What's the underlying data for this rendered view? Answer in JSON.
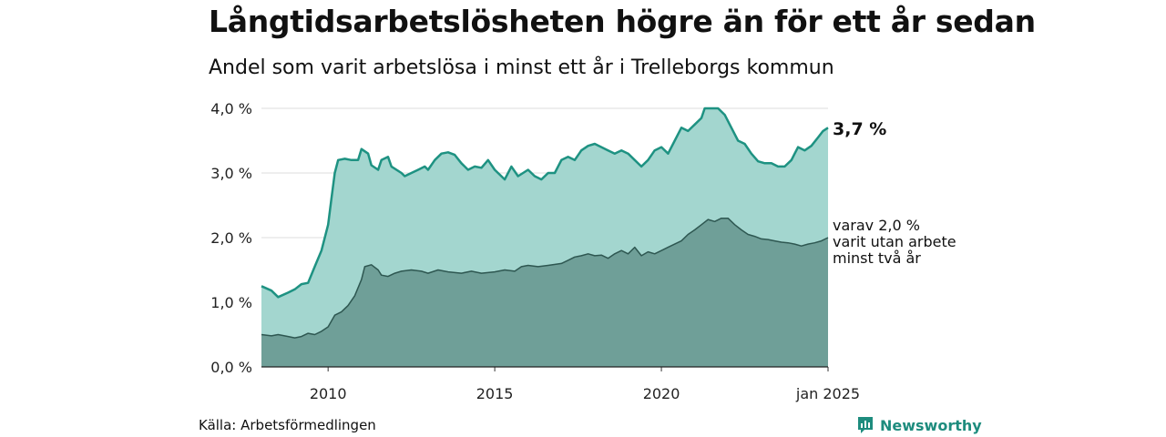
{
  "header": {
    "title": "Långtidsarbetslösheten högre än för ett år sedan",
    "subtitle": "Andel som varit arbetslösa i minst ett år i Trelleborgs kommun"
  },
  "footer": {
    "source": "Källa: Arbetsförmedlingen",
    "brand": "Newsworthy"
  },
  "labels": {
    "end_value": "3,7 %",
    "sub_line1": "varav 2,0 %",
    "sub_line2": "varit utan arbete",
    "sub_line3": "minst två år"
  },
  "colors": {
    "upper_fill": "#a3d6cf",
    "upper_line": "#1e9282",
    "lower_fill": "#6f9f98",
    "lower_line": "#2e5751",
    "grid": "#dddddd"
  },
  "chart_data": {
    "type": "area",
    "ylim": [
      0,
      4.0
    ],
    "y_ticks": [
      {
        "value": 0,
        "label": "0,0 %"
      },
      {
        "value": 1,
        "label": "1,0 %"
      },
      {
        "value": 2,
        "label": "2,0 %"
      },
      {
        "value": 3,
        "label": "3,0 %"
      },
      {
        "value": 4,
        "label": "4,0 %"
      }
    ],
    "x_ticks": [
      {
        "value": 2010.0,
        "label": "2010"
      },
      {
        "value": 2015.0,
        "label": "2015"
      },
      {
        "value": 2020.0,
        "label": "2020"
      },
      {
        "value": 2025.0,
        "label": "jan 2025"
      }
    ],
    "x_range": [
      2008.0,
      2025.0
    ],
    "series": [
      {
        "name": "minst ett år",
        "points": [
          [
            2008.0,
            1.25
          ],
          [
            2008.3,
            1.18
          ],
          [
            2008.5,
            1.08
          ],
          [
            2008.8,
            1.15
          ],
          [
            2009.0,
            1.2
          ],
          [
            2009.2,
            1.28
          ],
          [
            2009.4,
            1.3
          ],
          [
            2009.6,
            1.55
          ],
          [
            2009.8,
            1.8
          ],
          [
            2010.0,
            2.2
          ],
          [
            2010.1,
            2.6
          ],
          [
            2010.2,
            3.0
          ],
          [
            2010.3,
            3.2
          ],
          [
            2010.5,
            3.22
          ],
          [
            2010.7,
            3.2
          ],
          [
            2010.9,
            3.2
          ],
          [
            2011.0,
            3.37
          ],
          [
            2011.2,
            3.3
          ],
          [
            2011.3,
            3.12
          ],
          [
            2011.5,
            3.05
          ],
          [
            2011.6,
            3.2
          ],
          [
            2011.8,
            3.25
          ],
          [
            2011.9,
            3.1
          ],
          [
            2012.2,
            3.0
          ],
          [
            2012.3,
            2.95
          ],
          [
            2012.5,
            3.0
          ],
          [
            2012.7,
            3.05
          ],
          [
            2012.9,
            3.1
          ],
          [
            2013.0,
            3.05
          ],
          [
            2013.2,
            3.2
          ],
          [
            2013.4,
            3.3
          ],
          [
            2013.6,
            3.32
          ],
          [
            2013.8,
            3.28
          ],
          [
            2014.0,
            3.15
          ],
          [
            2014.2,
            3.05
          ],
          [
            2014.4,
            3.1
          ],
          [
            2014.6,
            3.08
          ],
          [
            2014.8,
            3.2
          ],
          [
            2015.0,
            3.05
          ],
          [
            2015.3,
            2.9
          ],
          [
            2015.5,
            3.1
          ],
          [
            2015.7,
            2.95
          ],
          [
            2016.0,
            3.05
          ],
          [
            2016.2,
            2.95
          ],
          [
            2016.4,
            2.9
          ],
          [
            2016.6,
            3.0
          ],
          [
            2016.8,
            3.0
          ],
          [
            2017.0,
            3.2
          ],
          [
            2017.2,
            3.25
          ],
          [
            2017.4,
            3.2
          ],
          [
            2017.6,
            3.35
          ],
          [
            2017.8,
            3.42
          ],
          [
            2018.0,
            3.45
          ],
          [
            2018.2,
            3.4
          ],
          [
            2018.4,
            3.35
          ],
          [
            2018.6,
            3.3
          ],
          [
            2018.8,
            3.35
          ],
          [
            2019.0,
            3.3
          ],
          [
            2019.2,
            3.2
          ],
          [
            2019.4,
            3.1
          ],
          [
            2019.6,
            3.2
          ],
          [
            2019.8,
            3.35
          ],
          [
            2020.0,
            3.4
          ],
          [
            2020.2,
            3.3
          ],
          [
            2020.4,
            3.5
          ],
          [
            2020.6,
            3.7
          ],
          [
            2020.8,
            3.65
          ],
          [
            2021.0,
            3.75
          ],
          [
            2021.2,
            3.85
          ],
          [
            2021.3,
            4.0
          ],
          [
            2021.5,
            4.0
          ],
          [
            2021.7,
            4.0
          ],
          [
            2021.9,
            3.9
          ],
          [
            2022.1,
            3.7
          ],
          [
            2022.3,
            3.5
          ],
          [
            2022.5,
            3.45
          ],
          [
            2022.7,
            3.3
          ],
          [
            2022.9,
            3.18
          ],
          [
            2023.1,
            3.15
          ],
          [
            2023.3,
            3.15
          ],
          [
            2023.5,
            3.1
          ],
          [
            2023.7,
            3.1
          ],
          [
            2023.9,
            3.2
          ],
          [
            2024.0,
            3.3
          ],
          [
            2024.1,
            3.4
          ],
          [
            2024.3,
            3.35
          ],
          [
            2024.5,
            3.42
          ],
          [
            2024.7,
            3.55
          ],
          [
            2024.85,
            3.65
          ],
          [
            2025.0,
            3.7
          ]
        ]
      },
      {
        "name": "minst två år",
        "points": [
          [
            2008.0,
            0.5
          ],
          [
            2008.3,
            0.48
          ],
          [
            2008.5,
            0.5
          ],
          [
            2008.8,
            0.47
          ],
          [
            2009.0,
            0.45
          ],
          [
            2009.2,
            0.47
          ],
          [
            2009.4,
            0.52
          ],
          [
            2009.6,
            0.5
          ],
          [
            2009.8,
            0.55
          ],
          [
            2010.0,
            0.62
          ],
          [
            2010.2,
            0.8
          ],
          [
            2010.4,
            0.85
          ],
          [
            2010.6,
            0.95
          ],
          [
            2010.8,
            1.1
          ],
          [
            2011.0,
            1.35
          ],
          [
            2011.1,
            1.55
          ],
          [
            2011.3,
            1.58
          ],
          [
            2011.5,
            1.5
          ],
          [
            2011.6,
            1.42
          ],
          [
            2011.8,
            1.4
          ],
          [
            2012.0,
            1.45
          ],
          [
            2012.2,
            1.48
          ],
          [
            2012.5,
            1.5
          ],
          [
            2012.8,
            1.48
          ],
          [
            2013.0,
            1.45
          ],
          [
            2013.3,
            1.5
          ],
          [
            2013.6,
            1.47
          ],
          [
            2014.0,
            1.45
          ],
          [
            2014.3,
            1.48
          ],
          [
            2014.6,
            1.45
          ],
          [
            2015.0,
            1.47
          ],
          [
            2015.3,
            1.5
          ],
          [
            2015.6,
            1.48
          ],
          [
            2015.8,
            1.55
          ],
          [
            2016.0,
            1.57
          ],
          [
            2016.3,
            1.55
          ],
          [
            2016.6,
            1.57
          ],
          [
            2017.0,
            1.6
          ],
          [
            2017.2,
            1.65
          ],
          [
            2017.4,
            1.7
          ],
          [
            2017.6,
            1.72
          ],
          [
            2017.8,
            1.75
          ],
          [
            2018.0,
            1.72
          ],
          [
            2018.2,
            1.73
          ],
          [
            2018.4,
            1.68
          ],
          [
            2018.6,
            1.75
          ],
          [
            2018.8,
            1.8
          ],
          [
            2019.0,
            1.75
          ],
          [
            2019.2,
            1.85
          ],
          [
            2019.4,
            1.72
          ],
          [
            2019.6,
            1.78
          ],
          [
            2019.8,
            1.75
          ],
          [
            2020.0,
            1.8
          ],
          [
            2020.2,
            1.85
          ],
          [
            2020.4,
            1.9
          ],
          [
            2020.6,
            1.95
          ],
          [
            2020.8,
            2.05
          ],
          [
            2021.0,
            2.12
          ],
          [
            2021.2,
            2.2
          ],
          [
            2021.4,
            2.28
          ],
          [
            2021.6,
            2.25
          ],
          [
            2021.8,
            2.3
          ],
          [
            2022.0,
            2.3
          ],
          [
            2022.2,
            2.2
          ],
          [
            2022.4,
            2.12
          ],
          [
            2022.6,
            2.05
          ],
          [
            2022.8,
            2.02
          ],
          [
            2023.0,
            1.98
          ],
          [
            2023.2,
            1.97
          ],
          [
            2023.4,
            1.95
          ],
          [
            2023.6,
            1.93
          ],
          [
            2023.8,
            1.92
          ],
          [
            2024.0,
            1.9
          ],
          [
            2024.2,
            1.87
          ],
          [
            2024.4,
            1.9
          ],
          [
            2024.6,
            1.92
          ],
          [
            2024.8,
            1.95
          ],
          [
            2025.0,
            2.0
          ]
        ]
      }
    ]
  }
}
